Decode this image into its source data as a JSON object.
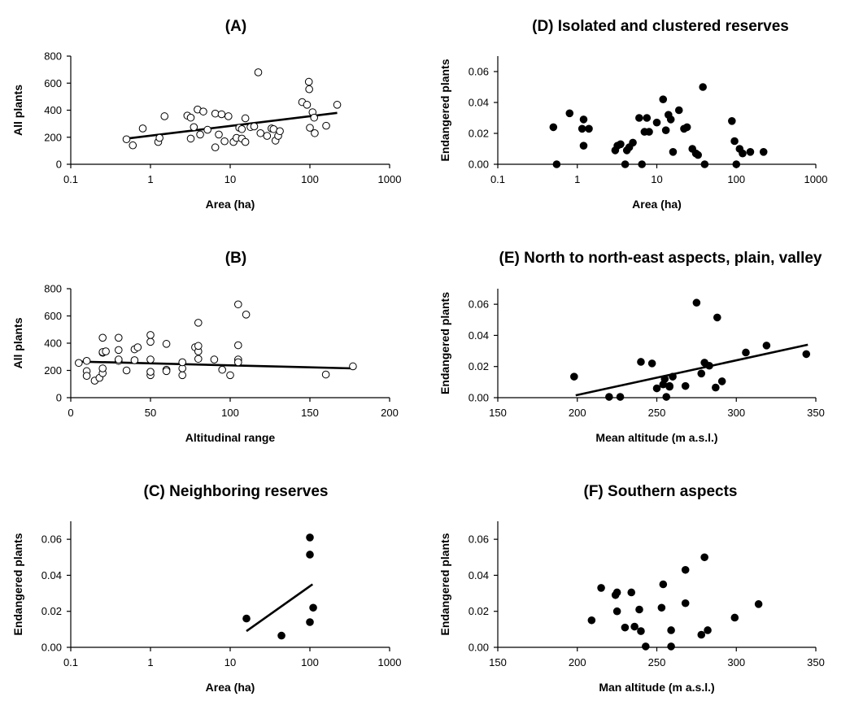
{
  "chart_data": [
    {
      "panel": "A",
      "type": "scatter",
      "title": "(A)",
      "xlabel": "Area (ha)",
      "ylabel": "All plants",
      "xscale": "log",
      "xlim": [
        0.1,
        1000
      ],
      "ylim": [
        0,
        800
      ],
      "xticks": [
        0.1,
        1,
        10,
        100,
        1000
      ],
      "xticklabels": [
        "0.1",
        "1",
        "10",
        "100",
        "1000"
      ],
      "yticks": [
        0,
        200,
        400,
        600,
        800
      ],
      "yticklabels": [
        "0",
        "200",
        "400",
        "600",
        "800"
      ],
      "marker": "open-circle",
      "x": [
        0.5,
        0.6,
        0.8,
        1.25,
        1.3,
        1.5,
        2.9,
        3.2,
        3.2,
        3.5,
        3.9,
        4.2,
        4.6,
        5.2,
        6.5,
        6.5,
        7.2,
        7.8,
        8.5,
        9.5,
        11,
        12,
        13,
        14,
        14,
        15.5,
        15.5,
        18,
        20,
        22.5,
        24,
        29,
        33,
        35,
        37,
        40,
        42,
        80,
        92,
        97,
        98,
        100,
        108,
        113,
        115,
        160,
        220
      ],
      "y": [
        185,
        140,
        265,
        165,
        195,
        355,
        360,
        190,
        345,
        275,
        405,
        220,
        390,
        255,
        125,
        375,
        220,
        370,
        170,
        355,
        165,
        195,
        270,
        260,
        190,
        340,
        165,
        275,
        280,
        680,
        230,
        210,
        265,
        260,
        175,
        210,
        245,
        460,
        440,
        610,
        555,
        270,
        385,
        345,
        230,
        285,
        440
      ],
      "trendline": {
        "x": [
          0.5,
          220
        ],
        "y": [
          190,
          380
        ]
      }
    },
    {
      "panel": "B",
      "type": "scatter",
      "title": "(B)",
      "xlabel": "Altitudinal range",
      "ylabel": "All plants",
      "xlim": [
        0,
        200
      ],
      "ylim": [
        0,
        800
      ],
      "xticks": [
        0,
        50,
        100,
        150,
        200
      ],
      "xticklabels": [
        "0",
        "50",
        "100",
        "150",
        "200"
      ],
      "yticks": [
        0,
        200,
        400,
        600,
        800
      ],
      "yticklabels": [
        "0",
        "200",
        "400",
        "600",
        "800"
      ],
      "marker": "open-circle",
      "x": [
        5,
        10,
        10,
        10,
        15,
        18,
        20,
        20,
        20,
        20,
        20,
        22,
        30,
        30,
        30,
        30,
        35,
        40,
        40,
        42,
        50,
        50,
        50,
        50,
        50,
        60,
        60,
        60,
        70,
        70,
        70,
        78,
        80,
        80,
        80,
        80,
        90,
        95,
        100,
        105,
        105,
        105,
        105,
        110,
        160,
        177
      ],
      "y": [
        255,
        195,
        160,
        270,
        125,
        145,
        180,
        215,
        440,
        330,
        335,
        340,
        440,
        350,
        270,
        280,
        200,
        275,
        355,
        370,
        165,
        190,
        410,
        460,
        280,
        205,
        195,
        395,
        165,
        215,
        260,
        370,
        550,
        285,
        340,
        380,
        280,
        205,
        165,
        685,
        385,
        280,
        260,
        610,
        170,
        230
      ],
      "trendline": {
        "x": [
          5,
          177
        ],
        "y": [
          265,
          215
        ]
      }
    },
    {
      "panel": "C",
      "type": "scatter",
      "title": "(C) Neighboring reserves",
      "xlabel": "Area (ha)",
      "ylabel": "Endangered plants",
      "xscale": "log",
      "xlim": [
        0.1,
        1000
      ],
      "ylim": [
        0,
        0.07
      ],
      "xticks": [
        0.1,
        1,
        10,
        100,
        1000
      ],
      "xticklabels": [
        "0.1",
        "1",
        "10",
        "100",
        "1000"
      ],
      "yticks": [
        0,
        0.02,
        0.04,
        0.06
      ],
      "yticklabels": [
        "0.00",
        "0.02",
        "0.04",
        "0.06"
      ],
      "marker": "filled-circle",
      "x": [
        16,
        44,
        100,
        100,
        100,
        110
      ],
      "y": [
        0.016,
        0.0065,
        0.061,
        0.0515,
        0.014,
        0.022
      ],
      "trendline": {
        "x": [
          16,
          108
        ],
        "y": [
          0.009,
          0.035
        ]
      }
    },
    {
      "panel": "D",
      "type": "scatter",
      "title": "(D) Isolated and clustered reserves",
      "xlabel": "Area (ha)",
      "ylabel": "Endangered plants",
      "xscale": "log",
      "xlim": [
        0.1,
        1000
      ],
      "ylim": [
        0,
        0.07
      ],
      "xticks": [
        0.1,
        1,
        10,
        100,
        1000
      ],
      "xticklabels": [
        "0.1",
        "1",
        "10",
        "100",
        "1000"
      ],
      "yticks": [
        0,
        0.02,
        0.04,
        0.06
      ],
      "yticklabels": [
        "0.00",
        "0.02",
        "0.04",
        "0.06"
      ],
      "marker": "filled-circle",
      "x": [
        0.5,
        0.55,
        0.8,
        1.15,
        1.2,
        1.2,
        1.4,
        3.0,
        3.2,
        3.5,
        4.0,
        4.2,
        4.5,
        5.0,
        6.0,
        6.5,
        7.0,
        7.5,
        8.0,
        10,
        12,
        13,
        14,
        15,
        16,
        19,
        22,
        24,
        28,
        31,
        33,
        38,
        40,
        88,
        95,
        100,
        110,
        120,
        150,
        220
      ],
      "y": [
        0.024,
        0.0,
        0.033,
        0.023,
        0.029,
        0.012,
        0.023,
        0.009,
        0.012,
        0.013,
        0.0,
        0.009,
        0.011,
        0.014,
        0.03,
        0.0,
        0.021,
        0.03,
        0.021,
        0.027,
        0.042,
        0.022,
        0.032,
        0.029,
        0.008,
        0.035,
        0.023,
        0.024,
        0.01,
        0.007,
        0.006,
        0.05,
        0.0,
        0.028,
        0.015,
        0.0,
        0.01,
        0.007,
        0.008,
        0.008
      ]
    },
    {
      "panel": "E",
      "type": "scatter",
      "title": "(E) North to north-east aspects, plain, valley",
      "xlabel": "Mean altitude (m a.s.l.)",
      "ylabel": "Endangered plants",
      "xlim": [
        150,
        350
      ],
      "ylim": [
        0,
        0.07
      ],
      "xticks": [
        150,
        200,
        250,
        300,
        350
      ],
      "xticklabels": [
        "150",
        "200",
        "250",
        "300",
        "350"
      ],
      "yticks": [
        0,
        0.02,
        0.04,
        0.06
      ],
      "yticklabels": [
        "0.00",
        "0.02",
        "0.04",
        "0.06"
      ],
      "marker": "filled-circle",
      "x": [
        198,
        220,
        227,
        240,
        247,
        250,
        254,
        255,
        256,
        258,
        258,
        260,
        268,
        275,
        278,
        280,
        283,
        287,
        288,
        291,
        306,
        319,
        344
      ],
      "y": [
        0.0135,
        0.0005,
        0.0005,
        0.023,
        0.022,
        0.006,
        0.0085,
        0.012,
        0.0005,
        0.007,
        0.0075,
        0.0135,
        0.0075,
        0.061,
        0.0155,
        0.0225,
        0.0205,
        0.0065,
        0.0515,
        0.0105,
        0.029,
        0.0335,
        0.028
      ],
      "trendline": {
        "x": [
          199,
          345
        ],
        "y": [
          0.0015,
          0.034
        ]
      }
    },
    {
      "panel": "F",
      "type": "scatter",
      "title": "(F) Southern aspects",
      "xlabel": "Man altitude (m a.s.l.)",
      "ylabel": "Endangered plants",
      "xlim": [
        150,
        350
      ],
      "ylim": [
        0,
        0.07
      ],
      "xticks": [
        150,
        200,
        250,
        300,
        350
      ],
      "xticklabels": [
        "150",
        "200",
        "250",
        "300",
        "350"
      ],
      "yticks": [
        0,
        0.02,
        0.04,
        0.06
      ],
      "yticklabels": [
        "0.00",
        "0.02",
        "0.04",
        "0.06"
      ],
      "marker": "filled-circle",
      "x": [
        209,
        215,
        224,
        225,
        225,
        230,
        234,
        236,
        239,
        240,
        243,
        253,
        254,
        259,
        259,
        268,
        268,
        278,
        280,
        282,
        299,
        314
      ],
      "y": [
        0.015,
        0.033,
        0.029,
        0.0305,
        0.02,
        0.011,
        0.0305,
        0.0115,
        0.021,
        0.009,
        0.0005,
        0.022,
        0.035,
        0.0095,
        0.0005,
        0.043,
        0.0245,
        0.007,
        0.05,
        0.0095,
        0.0165,
        0.024
      ]
    }
  ]
}
